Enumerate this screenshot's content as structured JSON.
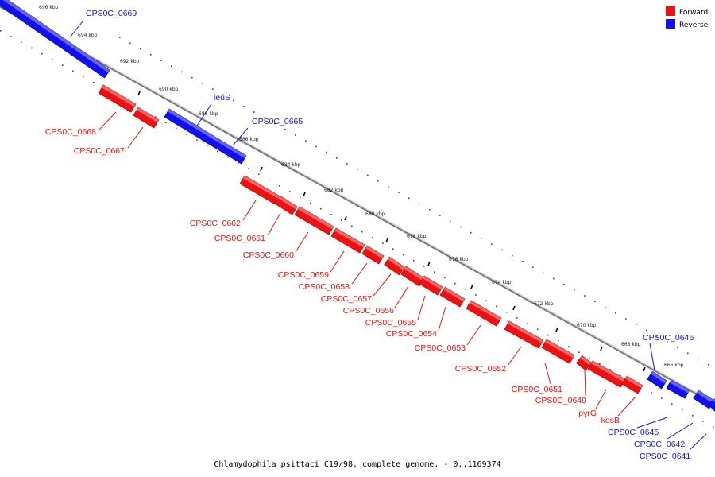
{
  "diagram": {
    "caption": "Chlamydophila psittaci C19/98, complete genome. - 0..1169374",
    "colors": {
      "forward": "#ee1111",
      "reverse": "#1111ee",
      "backbone": "#777777"
    },
    "legend": [
      {
        "label": "Forward",
        "color": "#ee1111"
      },
      {
        "label": "Reverse",
        "color": "#1111ee"
      }
    ],
    "ticks": [
      "696 kbp",
      "694 kbp",
      "692 kbp",
      "690 kbp",
      "688 kbp",
      "686 kbp",
      "684 kbp",
      "682 kbp",
      "680 kbp",
      "678 kbp",
      "676 kbp",
      "674 kbp",
      "672 kbp",
      "670 kbp",
      "668 kbp",
      "666 kbp"
    ],
    "genes": [
      {
        "name": "CPS0C_0669",
        "strand": "reverse"
      },
      {
        "name": "CPS0C_0668",
        "strand": "forward"
      },
      {
        "name": "CPS0C_0667",
        "strand": "forward"
      },
      {
        "name": "leuS",
        "strand": "reverse"
      },
      {
        "name": "CPS0C_0665",
        "strand": "reverse"
      },
      {
        "name": "CPS0C_0662",
        "strand": "forward"
      },
      {
        "name": "CPS0C_0661",
        "strand": "forward"
      },
      {
        "name": "CPS0C_0660",
        "strand": "forward"
      },
      {
        "name": "CPS0C_0659",
        "strand": "forward"
      },
      {
        "name": "CPS0C_0658",
        "strand": "forward"
      },
      {
        "name": "CPS0C_0657",
        "strand": "forward"
      },
      {
        "name": "CPS0C_0656",
        "strand": "forward"
      },
      {
        "name": "CPS0C_0655",
        "strand": "forward"
      },
      {
        "name": "CPS0C_0654",
        "strand": "forward"
      },
      {
        "name": "CPS0C_0653",
        "strand": "forward"
      },
      {
        "name": "CPS0C_0652",
        "strand": "forward"
      },
      {
        "name": "CPS0C_0651",
        "strand": "forward"
      },
      {
        "name": "CPS0C_0649",
        "strand": "forward"
      },
      {
        "name": "pyrG",
        "strand": "forward"
      },
      {
        "name": "kdsB",
        "strand": "forward"
      },
      {
        "name": "CPS0C_0646",
        "strand": "reverse"
      },
      {
        "name": "CPS0C_0645",
        "strand": "reverse"
      },
      {
        "name": "CPS0C_0642",
        "strand": "reverse"
      },
      {
        "name": "CPS0C_0641",
        "strand": "reverse"
      }
    ]
  }
}
